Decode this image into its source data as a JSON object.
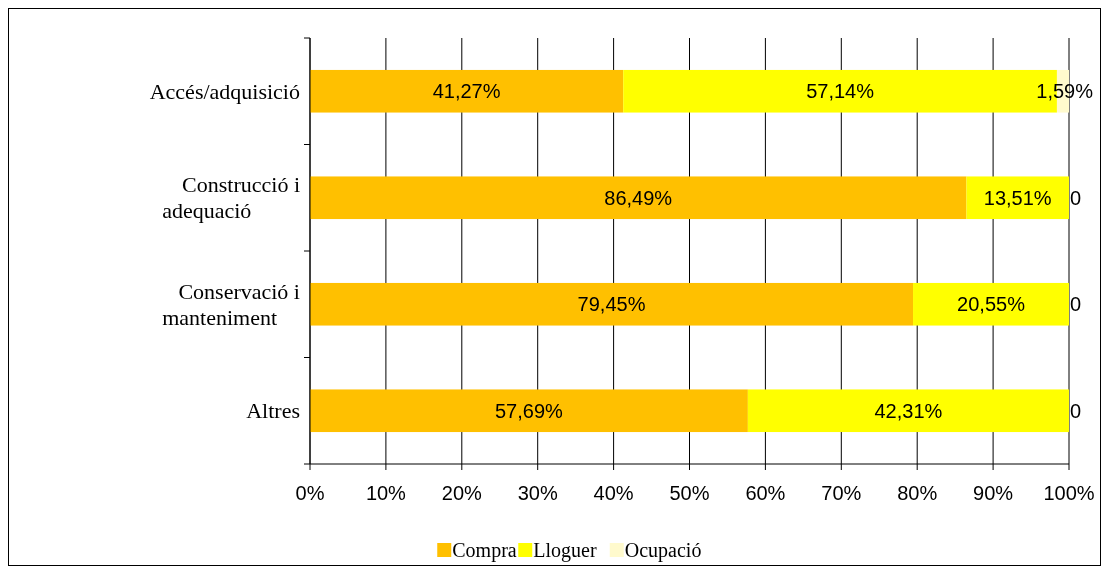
{
  "chart_data": {
    "type": "bar",
    "orientation": "horizontal",
    "stacked": true,
    "categories": [
      "Accés/adquisició",
      "Construcció i adequació",
      "Conservació i manteniment",
      "Altres"
    ],
    "series": [
      {
        "name": "Compra",
        "color": "#ffc000",
        "values": [
          41.27,
          86.49,
          79.45,
          57.69
        ],
        "value_labels": [
          "41,27%",
          "86,49%",
          "79,45%",
          "57,69%"
        ]
      },
      {
        "name": "Lloguer",
        "color": "#ffff00",
        "values": [
          57.14,
          13.51,
          20.55,
          42.31
        ],
        "value_labels": [
          "57,14%",
          "13,51%",
          "20,55%",
          "42,31%"
        ]
      },
      {
        "name": "Ocupació",
        "color": "#fffacd",
        "values": [
          1.59,
          0,
          0,
          0
        ],
        "value_labels": [
          "1,59%",
          "0",
          "0",
          "0"
        ]
      }
    ],
    "xlim": [
      0,
      100
    ],
    "xticks": [
      {
        "value": 0,
        "label": "0%"
      },
      {
        "value": 10,
        "label": "10%"
      },
      {
        "value": 20,
        "label": "20%"
      },
      {
        "value": 30,
        "label": "30%"
      },
      {
        "value": 40,
        "label": "40%"
      },
      {
        "value": 50,
        "label": "50%"
      },
      {
        "value": 60,
        "label": "60%"
      },
      {
        "value": 70,
        "label": "70%"
      },
      {
        "value": 80,
        "label": "80%"
      },
      {
        "value": 90,
        "label": "90%"
      },
      {
        "value": 100,
        "label": "100%"
      }
    ],
    "grid": "x",
    "legend": "bottom"
  }
}
